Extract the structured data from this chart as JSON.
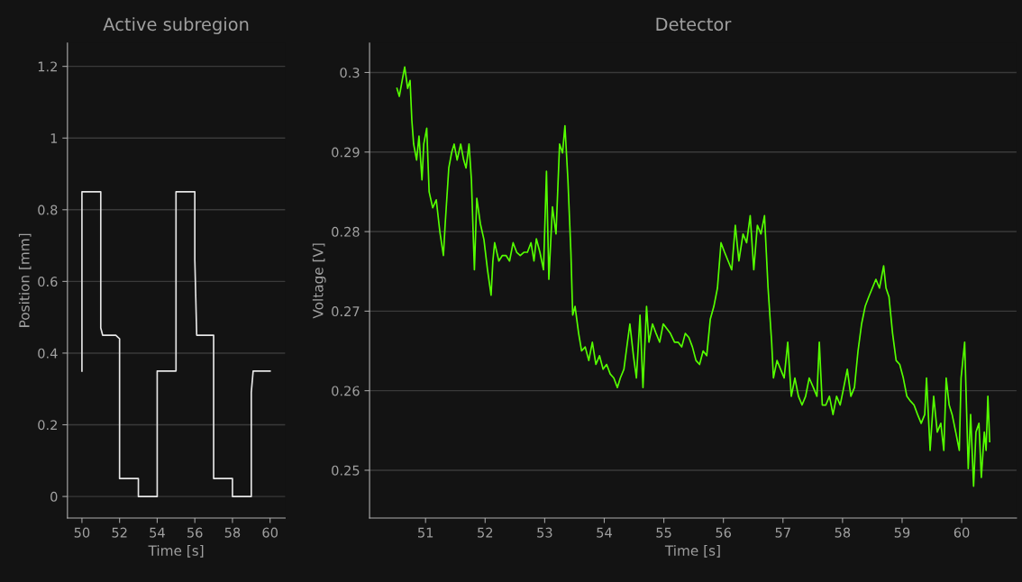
{
  "chart_data": [
    {
      "type": "line",
      "title": "Active subregion",
      "xlabel": "Time [s]",
      "ylabel": "Position [mm]",
      "xlim": [
        49.23,
        60.8
      ],
      "ylim": [
        -0.06,
        1.265
      ],
      "xticks": [
        50,
        52,
        54,
        56,
        58,
        60
      ],
      "yticks": [
        0,
        0.2,
        0.4,
        0.6,
        0.8,
        1,
        1.2
      ],
      "grid": "y",
      "series": [
        {
          "color": "#e6e6e6",
          "x": [
            50,
            50,
            51,
            51,
            51.1,
            51.8,
            52,
            52,
            53,
            53,
            54,
            54,
            55,
            55,
            56,
            56,
            56.1,
            57,
            57,
            58,
            58,
            59,
            59,
            59.1,
            60
          ],
          "values": [
            0.35,
            0.85,
            0.85,
            0.47,
            0.45,
            0.45,
            0.44,
            0.05,
            0.05,
            0,
            0,
            0.35,
            0.35,
            0.85,
            0.85,
            0.66,
            0.45,
            0.45,
            0.05,
            0.05,
            0,
            0,
            0.29,
            0.35,
            0.35
          ]
        }
      ]
    },
    {
      "type": "line",
      "title": "Detector",
      "xlabel": "Time [s]",
      "ylabel": "Voltage [V]",
      "xlim": [
        50.06,
        60.92
      ],
      "ylim": [
        0.244,
        0.3037
      ],
      "xticks": [
        51,
        52,
        53,
        54,
        55,
        56,
        57,
        58,
        59,
        60
      ],
      "yticks": [
        0.25,
        0.26,
        0.27,
        0.28,
        0.29,
        0.3
      ],
      "grid": "y",
      "series": [
        {
          "color": "#55ff00",
          "x": [
            50.52,
            50.56,
            50.62,
            50.65,
            50.7,
            50.74,
            50.77,
            50.8,
            50.85,
            50.89,
            50.94,
            50.97,
            51.02,
            51.06,
            51.12,
            51.18,
            51.24,
            51.3,
            51.33,
            51.39,
            51.44,
            51.48,
            51.53,
            51.59,
            51.64,
            51.68,
            51.73,
            51.77,
            51.82,
            51.86,
            51.92,
            51.98,
            52.04,
            52.1,
            52.13,
            52.16,
            52.23,
            52.29,
            52.35,
            52.41,
            52.47,
            52.53,
            52.59,
            52.65,
            52.71,
            52.77,
            52.82,
            52.86,
            52.92,
            52.98,
            53.03,
            53.07,
            53.13,
            53.19,
            53.25,
            53.3,
            53.34,
            53.39,
            53.44,
            53.47,
            53.51,
            53.57,
            53.62,
            53.68,
            53.74,
            53.8,
            53.86,
            53.92,
            53.98,
            54.04,
            54.1,
            54.16,
            54.22,
            54.27,
            54.33,
            54.37,
            54.43,
            54.49,
            54.54,
            54.6,
            54.65,
            54.71,
            54.75,
            54.81,
            54.87,
            54.93,
            54.99,
            55.05,
            55.11,
            55.18,
            55.24,
            55.3,
            55.36,
            55.42,
            55.48,
            55.54,
            55.6,
            55.66,
            55.72,
            55.78,
            55.84,
            55.9,
            55.96,
            56.02,
            56.08,
            56.14,
            56.2,
            56.26,
            56.33,
            56.39,
            56.45,
            56.51,
            56.57,
            56.63,
            56.69,
            56.75,
            56.81,
            56.84,
            56.9,
            56.96,
            57.02,
            57.08,
            57.14,
            57.2,
            57.26,
            57.32,
            57.38,
            57.44,
            57.51,
            57.57,
            57.61,
            57.66,
            57.72,
            57.78,
            57.84,
            57.9,
            57.96,
            58.02,
            58.08,
            58.14,
            58.2,
            58.26,
            58.32,
            58.38,
            58.44,
            58.5,
            58.56,
            58.62,
            58.69,
            58.73,
            58.78,
            58.84,
            58.9,
            58.96,
            59.02,
            59.08,
            59.14,
            59.2,
            59.26,
            59.32,
            59.38,
            59.41,
            59.47,
            59.53,
            59.59,
            59.65,
            59.7,
            59.74,
            59.79,
            59.84,
            59.9,
            59.96,
            59.99,
            60.05,
            60.11,
            60.15,
            60.2,
            60.24,
            60.29,
            60.33,
            60.38,
            60.41,
            60.44,
            60.47
          ],
          "values": [
            0.298,
            0.297,
            0.2995,
            0.3007,
            0.298,
            0.299,
            0.294,
            0.291,
            0.289,
            0.292,
            0.2865,
            0.291,
            0.293,
            0.285,
            0.283,
            0.284,
            0.28,
            0.277,
            0.281,
            0.288,
            0.29,
            0.291,
            0.289,
            0.291,
            0.289,
            0.288,
            0.291,
            0.2865,
            0.2752,
            0.2842,
            0.281,
            0.279,
            0.2752,
            0.272,
            0.2763,
            0.2786,
            0.2763,
            0.277,
            0.277,
            0.2763,
            0.2786,
            0.2774,
            0.277,
            0.2774,
            0.2774,
            0.2786,
            0.2763,
            0.2791,
            0.2774,
            0.2752,
            0.2876,
            0.274,
            0.2831,
            0.2797,
            0.291,
            0.2899,
            0.2933,
            0.2865,
            0.2774,
            0.2695,
            0.2706,
            0.2672,
            0.265,
            0.2655,
            0.2638,
            0.2661,
            0.2633,
            0.2644,
            0.2627,
            0.2633,
            0.2621,
            0.2616,
            0.2604,
            0.2616,
            0.2627,
            0.265,
            0.2684,
            0.2644,
            0.2616,
            0.2695,
            0.2604,
            0.2706,
            0.2661,
            0.2684,
            0.2672,
            0.2661,
            0.2684,
            0.2678,
            0.2672,
            0.2661,
            0.2661,
            0.2655,
            0.2672,
            0.2667,
            0.2655,
            0.2638,
            0.2633,
            0.265,
            0.2644,
            0.269,
            0.2706,
            0.2729,
            0.2786,
            0.2774,
            0.2763,
            0.2752,
            0.2808,
            0.2763,
            0.2797,
            0.2786,
            0.282,
            0.2752,
            0.2808,
            0.2797,
            0.282,
            0.2729,
            0.2661,
            0.2616,
            0.2638,
            0.2627,
            0.2616,
            0.2661,
            0.2593,
            0.2616,
            0.2593,
            0.2582,
            0.2593,
            0.2616,
            0.2604,
            0.2593,
            0.2661,
            0.2582,
            0.2582,
            0.2593,
            0.257,
            0.2593,
            0.2582,
            0.2604,
            0.2627,
            0.2593,
            0.2604,
            0.265,
            0.2684,
            0.2706,
            0.2718,
            0.2729,
            0.274,
            0.2729,
            0.2757,
            0.2729,
            0.2718,
            0.2672,
            0.2638,
            0.2633,
            0.2616,
            0.2593,
            0.2587,
            0.2582,
            0.257,
            0.2559,
            0.257,
            0.2616,
            0.2525,
            0.2593,
            0.2548,
            0.2559,
            0.2525,
            0.2616,
            0.2582,
            0.257,
            0.2548,
            0.2525,
            0.2616,
            0.2661,
            0.2502,
            0.257,
            0.248,
            0.2548,
            0.2559,
            0.2491,
            0.2548,
            0.2525,
            0.2593,
            0.2536
          ]
        }
      ]
    }
  ]
}
